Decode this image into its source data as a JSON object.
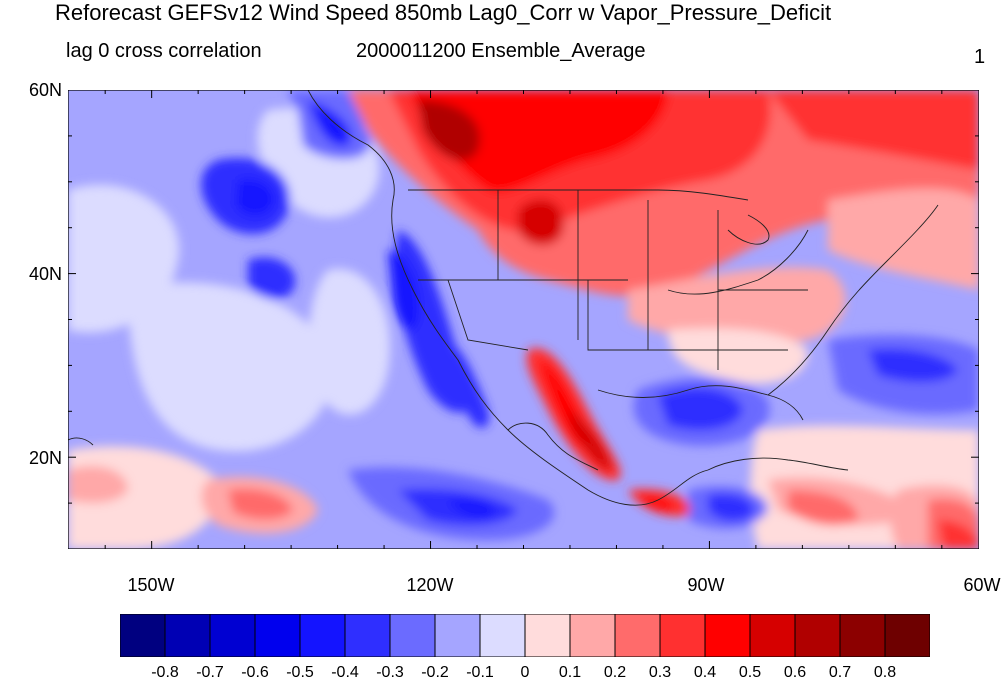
{
  "header": {
    "title": "Reforecast GEFSv12 Wind Speed 850mb Lag0_Corr w Vapor_Pressure_Deficit",
    "left_subtitle": "lag 0 cross correlation",
    "center_subtitle": "2000011200 Ensemble_Average",
    "right_subtitle": "1"
  },
  "map": {
    "lat_labels": [
      "60N",
      "40N",
      "20N"
    ],
    "lon_labels": [
      "150W",
      "120W",
      "90W",
      "60W"
    ],
    "lat_values": [
      60,
      40,
      20
    ],
    "lon_values": [
      -150,
      -120,
      -90,
      -60
    ],
    "lat_range": [
      10,
      60
    ],
    "lon_range": [
      -159,
      -61
    ],
    "field": "correlation of 850mb wind speed with vapor pressure deficit"
  },
  "colorbar": {
    "labels": [
      "-0.8",
      "-0.7",
      "-0.6",
      "-0.5",
      "-0.4",
      "-0.3",
      "-0.2",
      "-0.1",
      "0",
      "0.1",
      "0.2",
      "0.3",
      "0.4",
      "0.5",
      "0.6",
      "0.7",
      "0.8"
    ],
    "colors": [
      "#000080",
      "#0000b4",
      "#0000d2",
      "#0000ee",
      "#1414ff",
      "#2f2fff",
      "#6b6bff",
      "#a5a5ff",
      "#dcdcff",
      "#ffdcdc",
      "#ffa8a8",
      "#ff6b6b",
      "#ff3030",
      "#ff0000",
      "#d60000",
      "#b00000",
      "#8c0000",
      "#6e0000"
    ]
  }
}
